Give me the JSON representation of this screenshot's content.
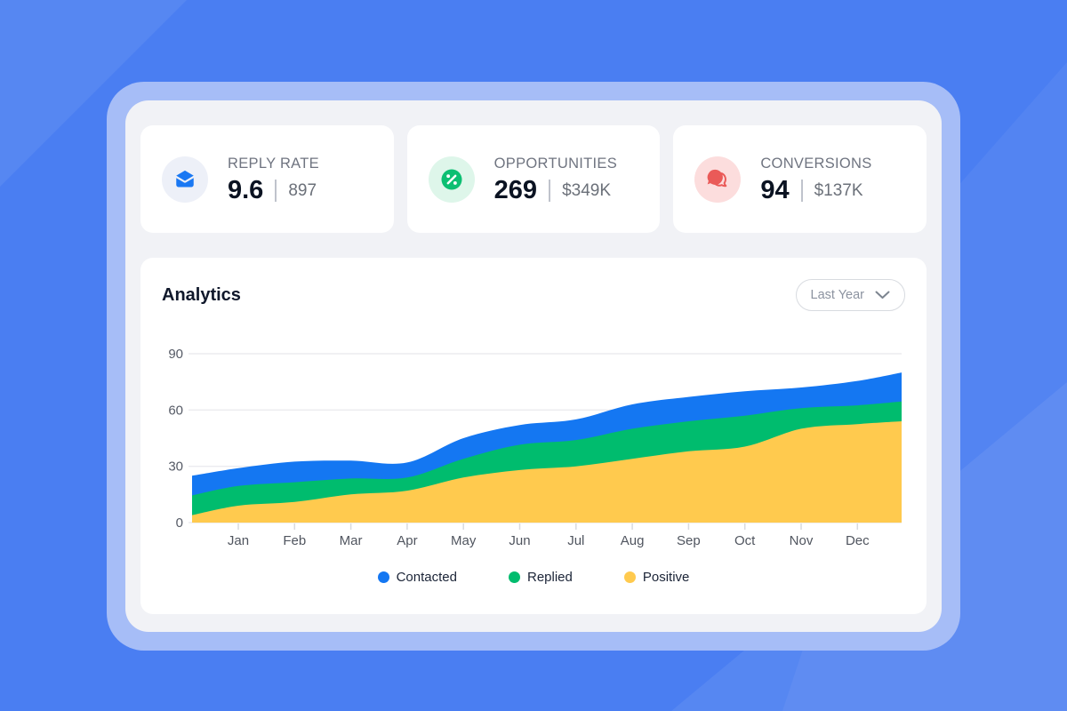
{
  "theme": {
    "page_bg": "#4a7ef2",
    "frame_ring": "#a6bdf7",
    "panel_bg": "#f1f2f6",
    "card_bg": "#ffffff",
    "grid_color": "#ebebef",
    "axis_text_color": "#565b66"
  },
  "stats": [
    {
      "label": "REPLY RATE",
      "value": "9.6",
      "secondary": "897",
      "icon": "envelope-open-icon",
      "icon_color": "#1a78f3",
      "icon_bg": "#edf0f8"
    },
    {
      "label": "OPPORTUNITIES",
      "value": "269",
      "secondary": "$349K",
      "icon": "percent-badge-icon",
      "icon_color": "#0cbf72",
      "icon_bg": "#def6ea"
    },
    {
      "label": "CONVERSIONS",
      "value": "94",
      "secondary": "$137K",
      "icon": "chat-bubbles-icon",
      "icon_color": "#ea5a58",
      "icon_bg": "#fcdddd"
    }
  ],
  "analytics": {
    "title": "Analytics",
    "range_selector": {
      "value": "Last Year"
    }
  },
  "chart_data": {
    "type": "area",
    "stacked": true,
    "title": "Analytics",
    "x_labels": [
      "Jan",
      "Feb",
      "Mar",
      "Apr",
      "May",
      "Jun",
      "Jul",
      "Aug",
      "Sep",
      "Oct",
      "Nov",
      "Dec"
    ],
    "edge_points": true,
    "note": "each series has 14 values: plot-left edge, 12 monthly values, plot-right edge; stacked bottom-to-top Positive, Replied, Contacted",
    "series": [
      {
        "name": "Contacted",
        "color": "#1477f2",
        "values": [
          10.5,
          9.5,
          11,
          9.5,
          8,
          11,
          10.5,
          11,
          13,
          13,
          13,
          11,
          13,
          15.5
        ]
      },
      {
        "name": "Replied",
        "color": "#00bc6e",
        "values": [
          10.5,
          10.5,
          10.5,
          8.5,
          7,
          10,
          13.5,
          14,
          16,
          16,
          16.5,
          11,
          10,
          10.5
        ]
      },
      {
        "name": "Positive",
        "color": "#ffca4e",
        "values": [
          4,
          9,
          11,
          15,
          17,
          24,
          28,
          30,
          34,
          38,
          40.5,
          50,
          52.5,
          54
        ]
      }
    ],
    "stack_tops": {
      "Positive": [
        4,
        9,
        11,
        15,
        17,
        24,
        28,
        30,
        34,
        38,
        40.5,
        50,
        52.5,
        54
      ],
      "Replied": [
        14.5,
        19.5,
        21.5,
        23.5,
        24,
        34,
        41.5,
        44,
        50,
        54,
        57,
        61,
        62.5,
        64.5
      ],
      "Contacted": [
        25,
        29,
        32.5,
        33,
        32,
        45,
        52,
        55,
        63,
        67,
        70,
        72,
        75.5,
        80
      ]
    },
    "y_ticks": [
      0,
      30,
      60,
      90
    ],
    "ylim": [
      0,
      96
    ],
    "grid": true,
    "legend_position": "bottom-center"
  }
}
